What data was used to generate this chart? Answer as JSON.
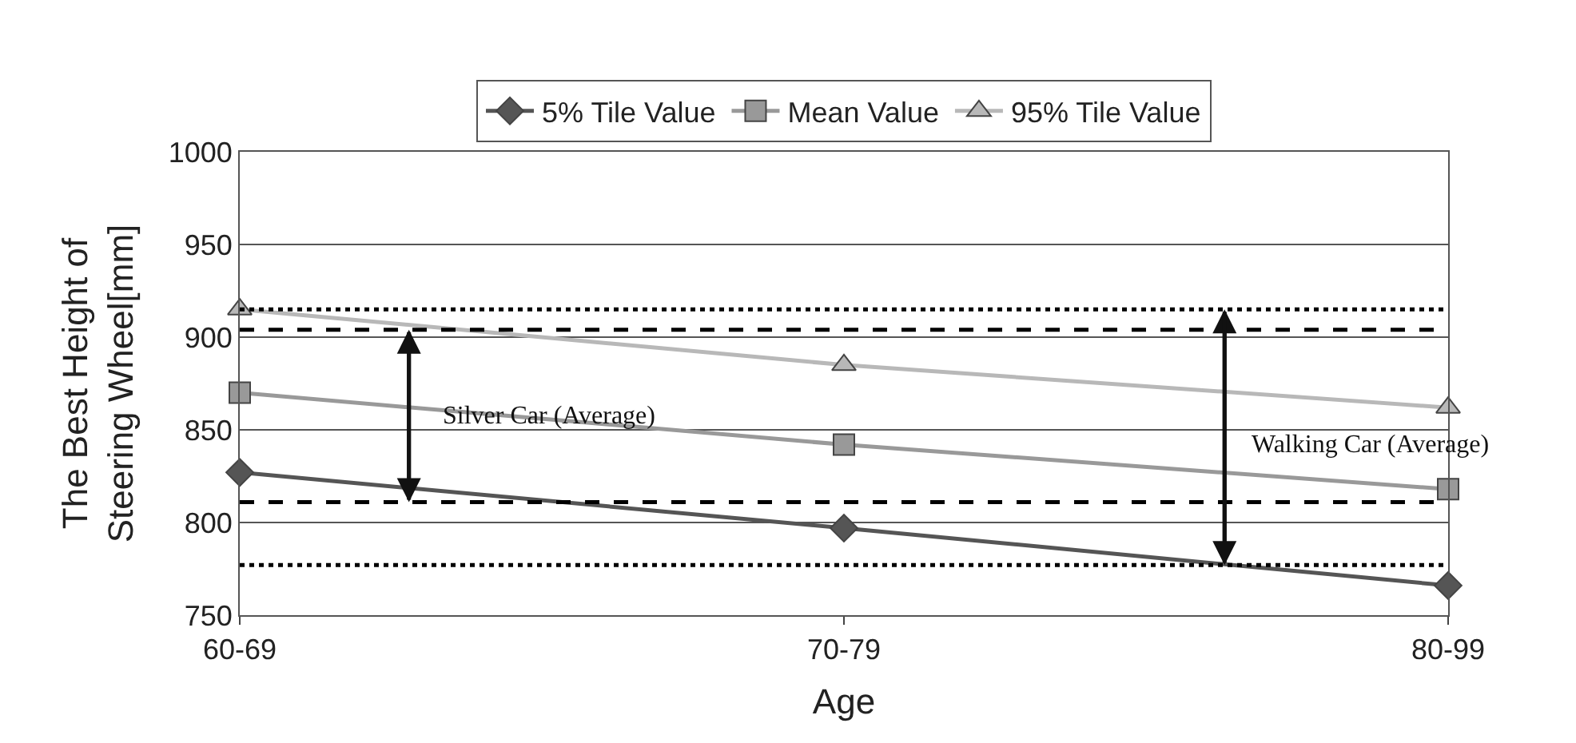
{
  "chart_data": {
    "type": "line",
    "xlabel": "Age",
    "ylabel": "The Best Height of\nSteering Wheel[mm]",
    "categories": [
      "60-69",
      "70-79",
      "80-99"
    ],
    "series": [
      {
        "name": "5% Tile Value",
        "color": "#555555",
        "values": [
          827,
          797,
          766
        ],
        "marker": "diamond"
      },
      {
        "name": "Mean Value",
        "color": "#999999",
        "values": [
          870,
          842,
          818
        ],
        "marker": "square"
      },
      {
        "name": "95% Tile Value",
        "color": "#b8b8b8",
        "values": [
          915,
          885,
          862
        ],
        "marker": "triangle"
      }
    ],
    "ylim": [
      750,
      1000
    ],
    "yticks": [
      750,
      800,
      850,
      900,
      950,
      1000
    ],
    "grid": "y",
    "legend": "top",
    "ref_lines": [
      {
        "axis": "y",
        "value": 915,
        "label": null,
        "color": "#000000",
        "line_style": "dotted"
      },
      {
        "axis": "y",
        "value": 904,
        "label": null,
        "color": "#000000",
        "line_style": "dashed"
      },
      {
        "axis": "y",
        "value": 811,
        "label": null,
        "color": "#000000",
        "line_style": "dashed"
      },
      {
        "axis": "y",
        "value": 777,
        "label": null,
        "color": "#000000",
        "line_style": "dotted"
      }
    ],
    "annotations": [
      "Silver Car (Average)",
      "Walking Car (Average)"
    ]
  }
}
